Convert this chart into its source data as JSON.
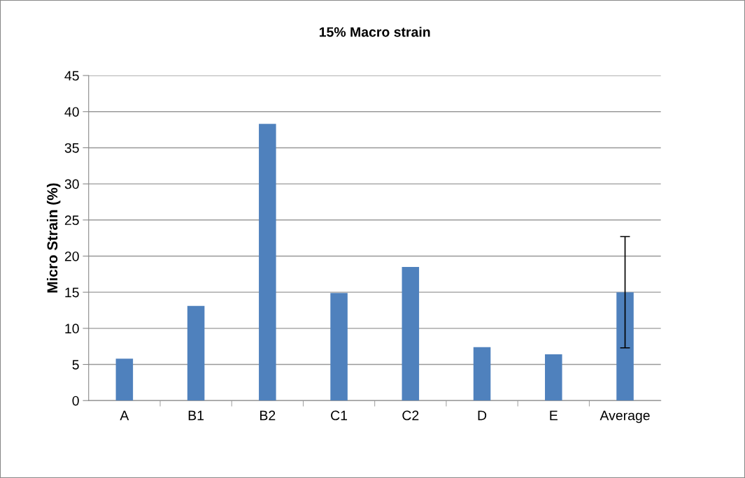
{
  "chart_data": {
    "type": "bar",
    "title": "15% Macro strain",
    "ylabel": "Micro Strain (%)",
    "categories": [
      "A",
      "B1",
      "B2",
      "C1",
      "C2",
      "D",
      "E",
      "Average"
    ],
    "values": [
      5.8,
      13.1,
      38.3,
      14.9,
      18.5,
      7.4,
      6.4,
      15.0
    ],
    "errors": [
      null,
      null,
      null,
      null,
      null,
      null,
      null,
      7.7
    ],
    "color": "#4f81bd",
    "ylim": [
      0,
      45
    ],
    "yticks": [
      0,
      5,
      10,
      15,
      20,
      25,
      30,
      35,
      40,
      45
    ],
    "grid": "y",
    "legend": false
  }
}
